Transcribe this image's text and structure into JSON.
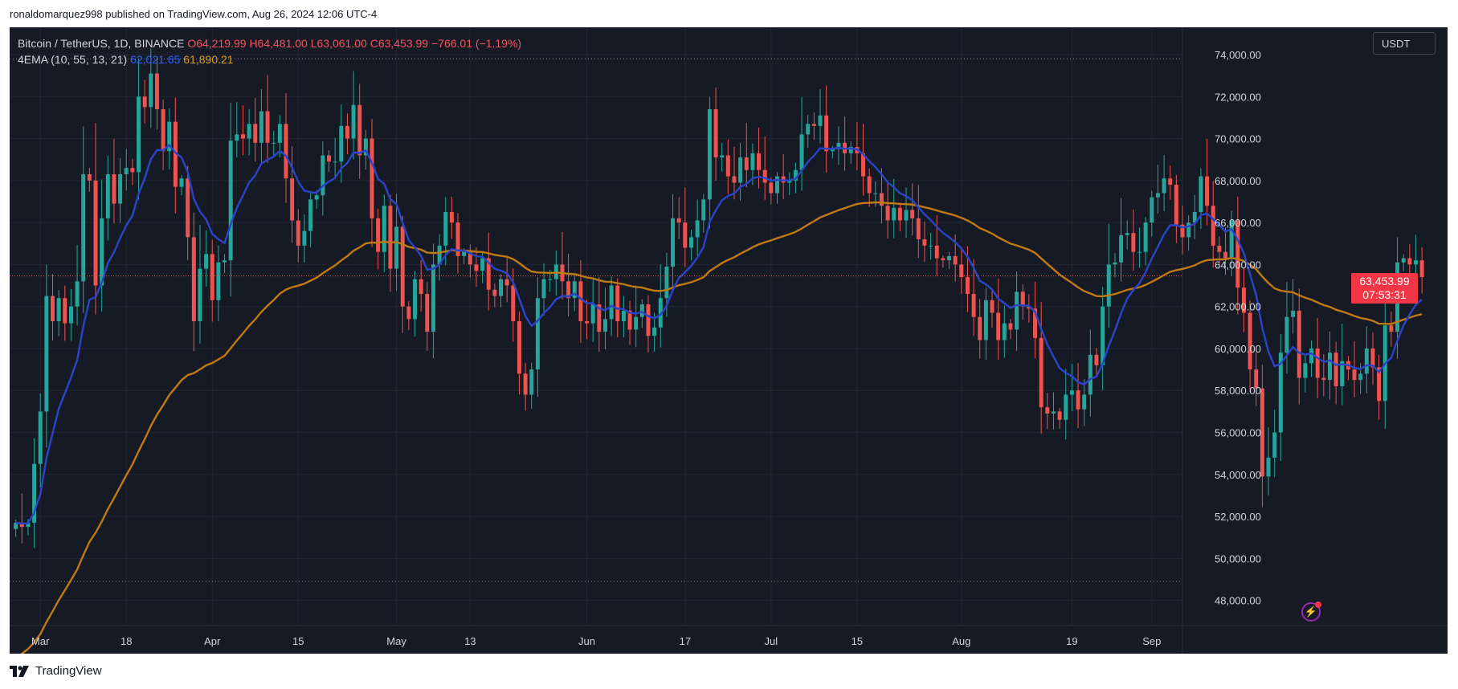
{
  "publisher_line": "ronaldomarquez998 published on TradingView.com, Aug 26, 2024 12:06 UTC-4",
  "footer_brand": "TradingView",
  "legend": {
    "symbol": "Bitcoin / TetherUS, 1D, BINANCE",
    "open": "O64,219.99",
    "high": "H64,481.00",
    "low": "L63,061.00",
    "close": "C63,453.99",
    "change": "−766.01 (−1.19%)",
    "indicator": "4EMA (10, 55, 13, 21)",
    "ema_fast_value": "62,021.65",
    "ema_slow_value": "61,890.21"
  },
  "currency_button": "USDT",
  "last_price": {
    "value": "63,453.99",
    "countdown": "07:53:31"
  },
  "colors": {
    "background": "#161a25",
    "up": "#26a69a",
    "down": "#ef5350",
    "ema_fast": "#2a44c9",
    "ema_slow": "#c07a12",
    "grid": "#232632",
    "axis_text": "#d1d4dc"
  },
  "chart_data": {
    "type": "candlestick",
    "title": "",
    "y_ticks": [
      48000,
      50000,
      52000,
      54000,
      56000,
      58000,
      60000,
      62000,
      64000,
      66000,
      68000,
      70000,
      72000,
      74000
    ],
    "y_tick_labels": [
      "48,000.00",
      "50,000.00",
      "52,000.00",
      "54,000.00",
      "56,000.00",
      "58,000.00",
      "60,000.00",
      "62,000.00",
      "64,000.00",
      "66,000.00",
      "68,000.00",
      "70,000.00",
      "72,000.00",
      "74,000.00"
    ],
    "ylim": [
      46800,
      75300
    ],
    "x_ticks": [
      {
        "label": "Mar",
        "day": 4
      },
      {
        "label": "18",
        "day": 18
      },
      {
        "label": "Apr",
        "day": 32
      },
      {
        "label": "15",
        "day": 46
      },
      {
        "label": "May",
        "day": 62
      },
      {
        "label": "13",
        "day": 74
      },
      {
        "label": "Jun",
        "day": 93
      },
      {
        "label": "17",
        "day": 109
      },
      {
        "label": "Jul",
        "day": 123
      },
      {
        "label": "15",
        "day": 137
      },
      {
        "label": "Aug",
        "day": 154
      },
      {
        "label": "19",
        "day": 172
      },
      {
        "label": "Sep",
        "day": 185
      }
    ],
    "x_range_days": [
      -1,
      190
    ],
    "reference_lines": [
      73800,
      48900
    ],
    "closes": [
      51700,
      51500,
      51700,
      54500,
      57000,
      62500,
      61300,
      62400,
      61200,
      62000,
      63200,
      68300,
      68000,
      63000,
      66200,
      68300,
      66900,
      68300,
      68600,
      68400,
      72000,
      71500,
      73100,
      71400,
      69400,
      70800,
      67700,
      68100,
      65300,
      61300,
      63800,
      64500,
      62300,
      64100,
      64200,
      69900,
      70200,
      70000,
      70700,
      69800,
      71300,
      69800,
      69800,
      70700,
      68100,
      66100,
      64900,
      65600,
      67100,
      67300,
      69200,
      68900,
      68900,
      70600,
      70000,
      71600,
      69200,
      70000,
      66200,
      64600,
      66800,
      63800,
      65800,
      62000,
      61400,
      63300,
      62600,
      60800,
      64000,
      64900,
      66500,
      66000,
      64400,
      64600,
      64000,
      63700,
      64300,
      62800,
      62500,
      63300,
      63000,
      61300,
      58800,
      57800,
      59000,
      62400,
      63300,
      63300,
      64000,
      63200,
      62400,
      63200,
      61300,
      61200,
      62100,
      60800,
      61400,
      63000,
      61300,
      61800,
      60900,
      61500,
      62100,
      60600,
      61000,
      62400,
      63900,
      66200,
      66000,
      64800,
      65300,
      66100,
      67100,
      71400,
      69100,
      69200,
      68200,
      67900,
      69100,
      68500,
      69300,
      68500,
      67900,
      67400,
      68200,
      67900,
      68000,
      68500,
      70200,
      70700,
      70600,
      71100,
      69400,
      69500,
      69800,
      69300,
      69600,
      69300,
      68200,
      67400,
      67400,
      66800,
      66100,
      66700,
      66100,
      66600,
      66200,
      65200,
      64900,
      64900,
      64300,
      64200,
      64400,
      64000,
      63400,
      62600,
      61500,
      60400,
      62300,
      61700,
      60400,
      61200,
      60900,
      62700,
      62000,
      61900,
      60500,
      57200,
      56900,
      57000,
      56600,
      57800,
      58000,
      57100,
      57800,
      59700,
      59200,
      62000,
      64000,
      64100,
      65400,
      65500,
      64600,
      64600,
      66000,
      67200,
      67400,
      68100,
      67800,
      65900,
      65300,
      66000,
      66500,
      68200,
      66800,
      64900,
      64600,
      64300,
      66100,
      62900,
      61700,
      59000,
      58100,
      53900,
      54800,
      56000,
      59800,
      61500,
      61800,
      58600,
      59300,
      60000,
      58600,
      58500,
      59800,
      58200,
      59400,
      59000,
      58500,
      58800,
      60000,
      59100,
      57500,
      61100,
      60800,
      64100,
      64300,
      64000,
      64200,
      63400
    ],
    "series": [
      {
        "name": "EMA 10",
        "value_label": "62,021.65"
      },
      {
        "name": "EMA 55",
        "value_label": "61,890.21"
      }
    ],
    "last_close": 63453.99
  }
}
